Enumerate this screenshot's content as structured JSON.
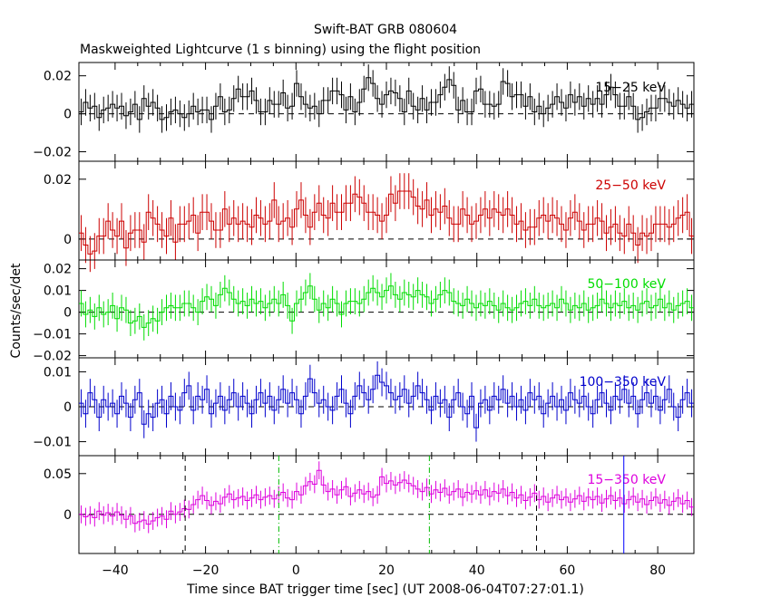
{
  "chart_data": {
    "type": "line",
    "title": "Swift-BAT GRB 080604",
    "subtitle": "Maskweighted Lightcurve (1 s binning) using the flight position",
    "xlabel": "Time since BAT trigger time [sec] (UT 2008-06-04T07:27:01.1)",
    "ylabel": "Counts/sec/det",
    "xlim": [
      -48,
      88
    ],
    "xticks": [
      -40,
      -20,
      0,
      20,
      40,
      60,
      80
    ],
    "xtick_labels": [
      "−40",
      "−20",
      "0",
      "20",
      "40",
      "60",
      "80"
    ],
    "panels": [
      {
        "band": "15−25 keV",
        "color": "#000000",
        "ylim": [
          -0.025,
          0.027
        ],
        "yticks": [
          -0.02,
          0,
          0.02
        ],
        "ytick_labels": [
          "−0.02",
          "0",
          "0.02"
        ],
        "err": 0.007,
        "values": [
          0.001,
          0.006,
          0.003,
          0.004,
          -0.002,
          0.002,
          0.003,
          0.005,
          0.003,
          0.004,
          -0.001,
          0.001,
          0.005,
          -0.003,
          0.008,
          0.004,
          0.006,
          0.003,
          -0.003,
          -0.002,
          0.001,
          0.002,
          0.0,
          -0.002,
          0.0,
          0.004,
          0.001,
          0.002,
          0.002,
          -0.003,
          0.004,
          0.009,
          0.001,
          0.002,
          0.008,
          0.013,
          0.009,
          0.009,
          0.012,
          0.007,
          0.001,
          0.001,
          0.007,
          0.005,
          0.005,
          0.011,
          0.003,
          0.004,
          0.016,
          0.009,
          0.005,
          0.003,
          0.004,
          0.0,
          0.007,
          0.007,
          0.012,
          0.012,
          0.01,
          0.002,
          0.009,
          0.001,
          0.006,
          0.013,
          0.019,
          0.016,
          0.008,
          0.005,
          0.01,
          0.012,
          0.011,
          0.008,
          0.001,
          0.012,
          0.004,
          0.002,
          0.008,
          0.002,
          0.006,
          0.006,
          0.01,
          0.014,
          0.018,
          0.015,
          0.002,
          0.007,
          0.001,
          0.001,
          0.012,
          0.013,
          0.005,
          0.005,
          0.004,
          0.005,
          0.017,
          0.016,
          0.009,
          0.01,
          0.01,
          0.004,
          0.009,
          0.001,
          0.004,
          0.0,
          0.003,
          0.005,
          0.009,
          0.006,
          0.003,
          0.01,
          0.006,
          0.009,
          0.004,
          0.008,
          0.005,
          0.008,
          0.005,
          0.01,
          0.014,
          0.01,
          0.004,
          0.004,
          0.009,
          0.004,
          -0.003,
          -0.002,
          0.001,
          0.003,
          0.003,
          0.008,
          0.008,
          0.006,
          0.004,
          0.007,
          0.005,
          0.003,
          0.005
        ]
      },
      {
        "band": "25−50 keV",
        "color": "#cc0000",
        "ylim": [
          -0.007,
          0.026
        ],
        "yticks": [
          0,
          0.02
        ],
        "ytick_labels": [
          "0",
          "0.02"
        ],
        "err": 0.006,
        "values": [
          0.002,
          -0.002,
          -0.005,
          -0.004,
          0.001,
          0.001,
          0.006,
          0.003,
          0.001,
          0.006,
          -0.003,
          0.002,
          0.003,
          0.003,
          -0.001,
          0.009,
          0.007,
          0.005,
          0.003,
          0.001,
          0.007,
          -0.001,
          0.005,
          0.005,
          0.006,
          0.008,
          0.002,
          0.009,
          0.009,
          0.006,
          0.003,
          0.003,
          0.01,
          0.005,
          0.007,
          0.005,
          0.006,
          0.005,
          0.004,
          0.008,
          0.007,
          0.005,
          0.006,
          0.013,
          0.005,
          0.006,
          0.007,
          0.004,
          0.01,
          0.013,
          0.008,
          0.004,
          0.009,
          0.012,
          0.008,
          0.007,
          0.012,
          0.009,
          0.009,
          0.012,
          0.012,
          0.015,
          0.014,
          0.012,
          0.009,
          0.009,
          0.008,
          0.006,
          0.008,
          0.015,
          0.012,
          0.016,
          0.016,
          0.016,
          0.014,
          0.011,
          0.01,
          0.013,
          0.008,
          0.01,
          0.009,
          0.011,
          0.007,
          0.005,
          0.005,
          0.01,
          0.008,
          0.005,
          0.006,
          0.008,
          0.01,
          0.007,
          0.01,
          0.009,
          0.008,
          0.01,
          0.008,
          0.005,
          0.006,
          0.003,
          0.004,
          0.004,
          0.007,
          0.008,
          0.006,
          0.008,
          0.007,
          0.005,
          0.003,
          0.007,
          0.009,
          0.006,
          0.003,
          0.005,
          0.005,
          0.007,
          0.006,
          0.002,
          0.004,
          0.005,
          0.002,
          0.001,
          0.005,
          0.002,
          -0.002,
          0.002,
          0.001,
          0.002,
          0.005,
          0.005,
          0.005,
          0.004,
          0.005,
          0.007,
          0.008,
          0.009,
          0.001
        ]
      },
      {
        "band": "50−100 keV",
        "color": "#00dd00",
        "ylim": [
          -0.021,
          0.024
        ],
        "yticks": [
          -0.02,
          -0.01,
          0,
          0.01,
          0.02
        ],
        "ytick_labels": [
          "−0.02",
          "−0.01",
          "0",
          "0.01",
          "0.02"
        ],
        "err": 0.006,
        "values": [
          0.004,
          -0.001,
          0.001,
          -0.002,
          0.002,
          -0.001,
          0.0,
          0.003,
          -0.003,
          0.002,
          0.001,
          -0.005,
          -0.004,
          -0.002,
          -0.007,
          -0.005,
          -0.003,
          -0.004,
          0.0,
          0.002,
          0.003,
          0.002,
          0.002,
          0.004,
          0.004,
          0.002,
          0.0,
          0.005,
          0.007,
          0.006,
          0.003,
          0.008,
          0.011,
          0.009,
          0.006,
          0.004,
          0.005,
          0.003,
          0.006,
          0.004,
          0.005,
          0.002,
          0.004,
          0.006,
          0.004,
          0.008,
          0.003,
          -0.004,
          0.004,
          0.006,
          0.009,
          0.012,
          0.006,
          0.001,
          0.004,
          0.002,
          0.006,
          0.004,
          -0.001,
          0.004,
          0.005,
          0.005,
          0.004,
          0.006,
          0.009,
          0.011,
          0.009,
          0.007,
          0.01,
          0.012,
          0.008,
          0.006,
          0.009,
          0.008,
          0.007,
          0.01,
          0.008,
          0.007,
          0.004,
          0.006,
          0.008,
          0.01,
          0.009,
          0.005,
          0.004,
          0.003,
          0.006,
          0.004,
          0.002,
          0.004,
          0.003,
          0.005,
          0.003,
          0.001,
          0.004,
          0.002,
          0.001,
          0.002,
          0.004,
          0.005,
          0.003,
          0.006,
          0.003,
          0.002,
          0.003,
          0.004,
          0.002,
          0.006,
          0.004,
          0.001,
          0.003,
          0.002,
          0.004,
          0.001,
          0.002,
          0.003,
          0.006,
          0.004,
          0.002,
          0.004,
          0.003,
          0.005,
          0.002,
          0.003,
          0.001,
          0.004,
          0.005,
          0.002,
          0.003,
          0.006,
          0.002,
          0.004,
          0.001,
          0.003,
          0.004,
          0.005,
          0.002
        ]
      },
      {
        "band": "100−350 keV",
        "color": "#0000cc",
        "ylim": [
          -0.014,
          0.014
        ],
        "yticks": [
          -0.01,
          0,
          0.01
        ],
        "ytick_labels": [
          "−0.01",
          "0",
          "0.01"
        ],
        "err": 0.004,
        "values": [
          0.001,
          -0.002,
          0.004,
          0.002,
          -0.003,
          0.002,
          0.0,
          0.001,
          -0.002,
          0.003,
          0.001,
          -0.003,
          0.002,
          0.004,
          -0.005,
          -0.002,
          -0.003,
          0.001,
          0.002,
          -0.002,
          0.003,
          0.0,
          -0.001,
          0.004,
          0.006,
          -0.001,
          0.003,
          0.002,
          0.005,
          -0.002,
          0.001,
          0.003,
          -0.001,
          0.002,
          0.004,
          0.0,
          0.003,
          0.001,
          -0.002,
          0.002,
          0.004,
          0.001,
          0.003,
          -0.001,
          0.002,
          0.005,
          0.001,
          0.004,
          0.002,
          -0.002,
          0.003,
          0.008,
          0.004,
          0.001,
          0.002,
          0.0,
          -0.001,
          0.003,
          0.005,
          0.001,
          -0.002,
          0.003,
          0.006,
          0.004,
          0.002,
          0.005,
          0.009,
          0.007,
          0.006,
          0.004,
          0.002,
          0.003,
          0.005,
          0.001,
          0.003,
          0.006,
          0.004,
          0.002,
          -0.001,
          0.003,
          0.001,
          0.002,
          -0.003,
          0.002,
          0.004,
          0.0,
          -0.002,
          0.003,
          -0.006,
          0.001,
          0.002,
          -0.001,
          0.003,
          0.002,
          0.005,
          0.001,
          0.003,
          0.0,
          0.002,
          -0.001,
          0.004,
          0.002,
          0.003,
          -0.002,
          0.001,
          0.003,
          0.0,
          0.002,
          -0.001,
          0.004,
          0.002,
          0.001,
          0.003,
          0.0,
          -0.002,
          0.002,
          0.004,
          0.001,
          -0.001,
          0.003,
          0.002,
          0.005,
          0.001,
          0.003,
          -0.002,
          0.002,
          0.004,
          0.001,
          0.003,
          -0.001,
          0.002,
          0.005,
          0.0,
          -0.003,
          0.002,
          0.004,
          0.001
        ]
      },
      {
        "band": "15−350 keV",
        "color": "#dd00dd",
        "ylim": [
          -0.048,
          0.072
        ],
        "yticks": [
          0,
          0.05
        ],
        "ytick_labels": [
          "0",
          "0.05"
        ],
        "err": 0.011,
        "values": [
          0.0,
          -0.003,
          -0.001,
          -0.004,
          0.004,
          -0.001,
          0.002,
          -0.002,
          0.003,
          -0.001,
          -0.006,
          -0.002,
          -0.011,
          -0.009,
          -0.007,
          -0.012,
          -0.008,
          -0.004,
          -0.002,
          -0.006,
          0.004,
          0.0,
          0.003,
          0.007,
          0.006,
          0.012,
          0.018,
          0.023,
          0.017,
          0.011,
          0.016,
          0.013,
          0.021,
          0.025,
          0.018,
          0.02,
          0.022,
          0.017,
          0.02,
          0.024,
          0.018,
          0.021,
          0.023,
          0.019,
          0.024,
          0.027,
          0.02,
          0.018,
          0.028,
          0.024,
          0.035,
          0.04,
          0.037,
          0.054,
          0.036,
          0.028,
          0.031,
          0.024,
          0.03,
          0.034,
          0.022,
          0.026,
          0.03,
          0.025,
          0.028,
          0.021,
          0.024,
          0.046,
          0.038,
          0.041,
          0.036,
          0.039,
          0.042,
          0.038,
          0.035,
          0.031,
          0.028,
          0.033,
          0.025,
          0.03,
          0.027,
          0.032,
          0.024,
          0.028,
          0.031,
          0.021,
          0.027,
          0.025,
          0.029,
          0.024,
          0.03,
          0.022,
          0.028,
          0.026,
          0.031,
          0.023,
          0.027,
          0.02,
          0.024,
          0.017,
          0.021,
          0.026,
          0.018,
          0.022,
          0.015,
          0.02,
          0.024,
          0.018,
          0.021,
          0.015,
          0.019,
          0.023,
          0.016,
          0.021,
          0.018,
          0.022,
          0.014,
          0.019,
          0.023,
          0.017,
          0.02,
          0.013,
          0.018,
          0.022,
          0.015,
          0.019,
          0.012,
          0.017,
          0.021,
          0.014,
          0.018,
          0.011,
          0.016,
          0.02,
          0.013,
          0.017,
          0.009
        ]
      }
    ],
    "markers": [
      {
        "x": -24.5,
        "color": "#000000",
        "panel": 4
      },
      {
        "x": -3.8,
        "color": "#00bb00",
        "panel": 4
      },
      {
        "x": 29.5,
        "color": "#00bb00",
        "panel": 4
      },
      {
        "x": 53.2,
        "color": "#000000",
        "panel": 4
      },
      {
        "x": 72.5,
        "color": "#0000ff",
        "panel": 4,
        "solid": true
      }
    ]
  }
}
